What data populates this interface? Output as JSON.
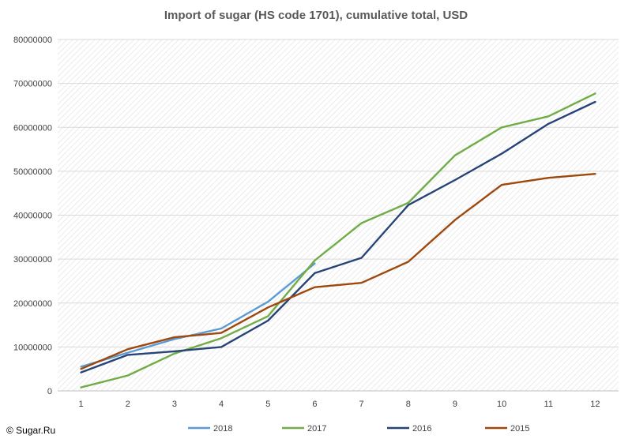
{
  "chart_data": {
    "type": "line",
    "title": "Import of sugar (HS code 1701), cumulative total, USD",
    "xlabel": "",
    "ylabel": "",
    "categories": [
      "1",
      "2",
      "3",
      "4",
      "5",
      "6",
      "7",
      "8",
      "9",
      "10",
      "11",
      "12"
    ],
    "ylim": [
      0,
      80000000
    ],
    "yticks": [
      "0",
      "10000000",
      "20000000",
      "30000000",
      "40000000",
      "50000000",
      "60000000",
      "70000000",
      "80000000"
    ],
    "grid": true,
    "legend_position": "bottom",
    "series": [
      {
        "name": "2018",
        "color": "#5b9bd5",
        "values": [
          5500000,
          8700000,
          11800000,
          14200000,
          20300000,
          29000000,
          null,
          null,
          null,
          null,
          null,
          null
        ]
      },
      {
        "name": "2017",
        "color": "#70ad47",
        "values": [
          800000,
          3500000,
          8500000,
          12000000,
          17000000,
          29700000,
          38200000,
          42800000,
          53600000,
          60000000,
          62500000,
          67700000
        ]
      },
      {
        "name": "2016",
        "color": "#264478",
        "values": [
          4200000,
          8200000,
          9000000,
          10000000,
          16000000,
          26800000,
          30300000,
          42300000,
          48000000,
          54000000,
          60800000,
          65800000
        ]
      },
      {
        "name": "2015",
        "color": "#9e480e",
        "values": [
          5000000,
          9500000,
          12200000,
          13200000,
          19000000,
          23600000,
          24600000,
          29400000,
          38900000,
          46900000,
          48500000,
          49400000
        ]
      }
    ]
  },
  "credit": "© Sugar.Ru"
}
